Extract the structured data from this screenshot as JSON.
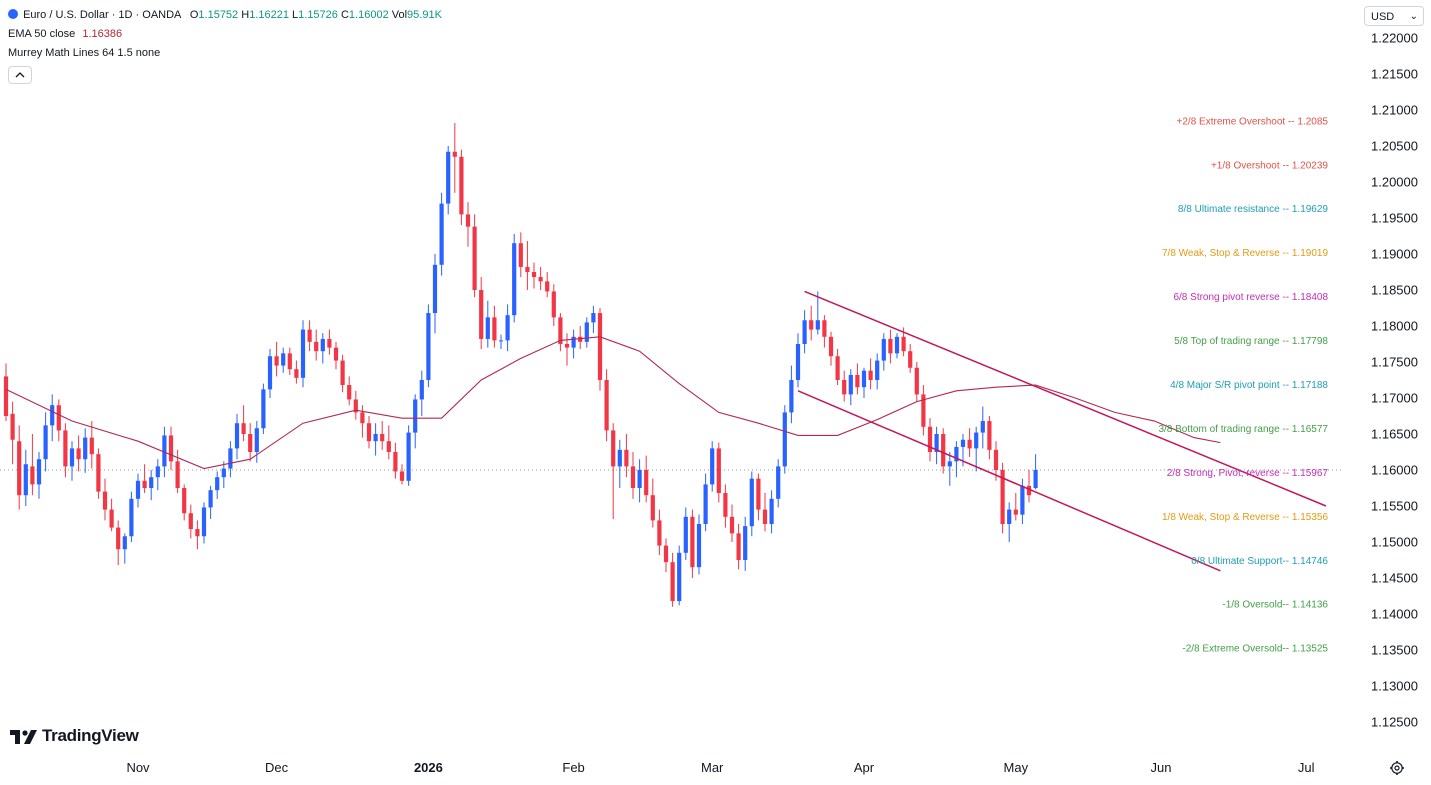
{
  "header": {
    "symbol": "Euro / U.S. Dollar · 1D · OANDA",
    "ohlc": {
      "o_label": "O",
      "o": "1.15752",
      "h_label": "H",
      "h": "1.16221",
      "l_label": "L",
      "l": "1.15726",
      "c_label": "C",
      "c": "1.16002",
      "vol_label": "Vol",
      "vol": "95.91K"
    },
    "ema_label": "EMA 50 close",
    "ema_value": "1.16386",
    "murrey_label": "Murrey Math Lines 64 1.5 none",
    "collapse_icon": "chevron-up-icon"
  },
  "currency": {
    "label": "USD"
  },
  "branding": {
    "logo_text": "TradingView",
    "logo_icon": "tradingview-logo-icon"
  },
  "colors": {
    "up": "#2962ff",
    "down": "#f23645",
    "ema": "#b22852",
    "channel": "#c2185b"
  },
  "chart_data": {
    "type": "candlestick",
    "ylim": [
      1.12,
      1.225
    ],
    "y_ticks": [
      "1.22000",
      "1.21500",
      "1.21000",
      "1.20500",
      "1.20000",
      "1.19500",
      "1.19000",
      "1.18500",
      "1.18000",
      "1.17500",
      "1.17000",
      "1.16500",
      "1.16000",
      "1.15500",
      "1.15000",
      "1.14500",
      "1.14000",
      "1.13500",
      "1.13000",
      "1.12500"
    ],
    "x_ticks": [
      {
        "label": "Nov",
        "bar": 20
      },
      {
        "label": "Dec",
        "bar": 41
      },
      {
        "label": "2026",
        "bar": 64,
        "bold": true
      },
      {
        "label": "Feb",
        "bar": 86
      },
      {
        "label": "Mar",
        "bar": 107
      },
      {
        "label": "Apr",
        "bar": 130
      },
      {
        "label": "May",
        "bar": 153
      },
      {
        "label": "Jun",
        "bar": 175
      },
      {
        "label": "Jul",
        "bar": 197
      }
    ],
    "candles": [
      [
        1.173,
        1.1748,
        1.1668,
        1.1675
      ],
      [
        1.1678,
        1.1695,
        1.1608,
        1.1642
      ],
      [
        1.164,
        1.1662,
        1.1545,
        1.1565
      ],
      [
        1.1565,
        1.1628,
        1.155,
        1.1608
      ],
      [
        1.1605,
        1.165,
        1.1565,
        1.158
      ],
      [
        1.158,
        1.1625,
        1.156,
        1.1615
      ],
      [
        1.1615,
        1.168,
        1.1598,
        1.1662
      ],
      [
        1.1662,
        1.1705,
        1.164,
        1.169
      ],
      [
        1.169,
        1.1698,
        1.164,
        1.1655
      ],
      [
        1.1655,
        1.1665,
        1.159,
        1.1605
      ],
      [
        1.1605,
        1.164,
        1.1585,
        1.163
      ],
      [
        1.163,
        1.1648,
        1.1598,
        1.1615
      ],
      [
        1.1615,
        1.1658,
        1.1596,
        1.1645
      ],
      [
        1.1645,
        1.1668,
        1.1602,
        1.1622
      ],
      [
        1.1622,
        1.163,
        1.156,
        1.157
      ],
      [
        1.157,
        1.1588,
        1.153,
        1.1545
      ],
      [
        1.1545,
        1.156,
        1.1515,
        1.152
      ],
      [
        1.152,
        1.153,
        1.1468,
        1.149
      ],
      [
        1.149,
        1.1512,
        1.147,
        1.1508
      ],
      [
        1.1508,
        1.157,
        1.15,
        1.156
      ],
      [
        1.156,
        1.1595,
        1.1548,
        1.1585
      ],
      [
        1.1585,
        1.1608,
        1.1568,
        1.1575
      ],
      [
        1.1575,
        1.16,
        1.1558,
        1.159
      ],
      [
        1.159,
        1.1615,
        1.1572,
        1.1605
      ],
      [
        1.1605,
        1.166,
        1.159,
        1.1648
      ],
      [
        1.1648,
        1.166,
        1.16,
        1.1612
      ],
      [
        1.1612,
        1.1628,
        1.1568,
        1.1575
      ],
      [
        1.1575,
        1.158,
        1.153,
        1.154
      ],
      [
        1.154,
        1.1552,
        1.1505,
        1.1518
      ],
      [
        1.1518,
        1.153,
        1.149,
        1.1508
      ],
      [
        1.1508,
        1.1555,
        1.1498,
        1.1548
      ],
      [
        1.1548,
        1.1578,
        1.1532,
        1.1572
      ],
      [
        1.1572,
        1.1598,
        1.156,
        1.159
      ],
      [
        1.159,
        1.1612,
        1.1575,
        1.1602
      ],
      [
        1.1602,
        1.164,
        1.159,
        1.163
      ],
      [
        1.163,
        1.1678,
        1.1615,
        1.1665
      ],
      [
        1.1665,
        1.169,
        1.164,
        1.165
      ],
      [
        1.165,
        1.1665,
        1.1612,
        1.1625
      ],
      [
        1.1625,
        1.1668,
        1.161,
        1.1658
      ],
      [
        1.1658,
        1.172,
        1.165,
        1.1712
      ],
      [
        1.1712,
        1.1768,
        1.17,
        1.1758
      ],
      [
        1.1758,
        1.1778,
        1.173,
        1.1745
      ],
      [
        1.1745,
        1.177,
        1.1735,
        1.1762
      ],
      [
        1.1762,
        1.177,
        1.1732,
        1.174
      ],
      [
        1.174,
        1.1752,
        1.172,
        1.1728
      ],
      [
        1.1728,
        1.1808,
        1.1715,
        1.1795
      ],
      [
        1.1795,
        1.1808,
        1.1765,
        1.1778
      ],
      [
        1.1778,
        1.1795,
        1.1752,
        1.1765
      ],
      [
        1.1765,
        1.179,
        1.1748,
        1.1782
      ],
      [
        1.1782,
        1.1795,
        1.176,
        1.177
      ],
      [
        1.177,
        1.1778,
        1.174,
        1.1752
      ],
      [
        1.1752,
        1.176,
        1.1708,
        1.1718
      ],
      [
        1.1718,
        1.173,
        1.169,
        1.1698
      ],
      [
        1.1698,
        1.171,
        1.167,
        1.168
      ],
      [
        1.168,
        1.169,
        1.1645,
        1.1665
      ],
      [
        1.1665,
        1.1675,
        1.163,
        1.164
      ],
      [
        1.164,
        1.1665,
        1.162,
        1.165
      ],
      [
        1.165,
        1.1668,
        1.1628,
        1.164
      ],
      [
        1.164,
        1.1662,
        1.1615,
        1.1625
      ],
      [
        1.1625,
        1.1638,
        1.1588,
        1.1598
      ],
      [
        1.1598,
        1.1608,
        1.158,
        1.1585
      ],
      [
        1.1585,
        1.1662,
        1.1578,
        1.1652
      ],
      [
        1.1652,
        1.1705,
        1.163,
        1.1698
      ],
      [
        1.1698,
        1.1738,
        1.1675,
        1.1725
      ],
      [
        1.1725,
        1.183,
        1.1715,
        1.1818
      ],
      [
        1.1818,
        1.19,
        1.179,
        1.1885
      ],
      [
        1.1885,
        1.1985,
        1.187,
        1.197
      ],
      [
        1.197,
        1.205,
        1.1955,
        1.2042
      ],
      [
        1.2042,
        1.2082,
        1.1985,
        1.2035
      ],
      [
        1.2035,
        1.2045,
        1.194,
        1.1955
      ],
      [
        1.1955,
        1.1972,
        1.191,
        1.1938
      ],
      [
        1.1938,
        1.1955,
        1.184,
        1.185
      ],
      [
        1.185,
        1.1868,
        1.1768,
        1.1782
      ],
      [
        1.1782,
        1.1835,
        1.177,
        1.1812
      ],
      [
        1.1812,
        1.1828,
        1.177,
        1.178
      ],
      [
        1.178,
        1.1788,
        1.1768,
        1.178
      ],
      [
        1.178,
        1.183,
        1.1765,
        1.1815
      ],
      [
        1.1815,
        1.1928,
        1.1805,
        1.1915
      ],
      [
        1.1915,
        1.193,
        1.1868,
        1.1882
      ],
      [
        1.1882,
        1.1918,
        1.185,
        1.1875
      ],
      [
        1.1875,
        1.1888,
        1.1852,
        1.1868
      ],
      [
        1.1868,
        1.1882,
        1.185,
        1.1862
      ],
      [
        1.1862,
        1.1875,
        1.184,
        1.1848
      ],
      [
        1.1848,
        1.1858,
        1.18,
        1.1812
      ],
      [
        1.1812,
        1.1818,
        1.1765,
        1.1775
      ],
      [
        1.1775,
        1.179,
        1.1745,
        1.177
      ],
      [
        1.177,
        1.1795,
        1.1755,
        1.1785
      ],
      [
        1.1785,
        1.18,
        1.1768,
        1.1778
      ],
      [
        1.1778,
        1.1812,
        1.177,
        1.1805
      ],
      [
        1.1805,
        1.1828,
        1.179,
        1.1818
      ],
      [
        1.1818,
        1.1825,
        1.171,
        1.1725
      ],
      [
        1.1725,
        1.174,
        1.164,
        1.1655
      ],
      [
        1.1655,
        1.1665,
        1.1532,
        1.1605
      ],
      [
        1.1605,
        1.1642,
        1.1575,
        1.1628
      ],
      [
        1.1628,
        1.165,
        1.159,
        1.1605
      ],
      [
        1.1605,
        1.1625,
        1.156,
        1.1575
      ],
      [
        1.1575,
        1.1615,
        1.1555,
        1.16
      ],
      [
        1.16,
        1.162,
        1.1555,
        1.1565
      ],
      [
        1.1565,
        1.1588,
        1.152,
        1.153
      ],
      [
        1.153,
        1.1545,
        1.1482,
        1.1495
      ],
      [
        1.1495,
        1.1505,
        1.1458,
        1.1472
      ],
      [
        1.1472,
        1.1485,
        1.141,
        1.1418
      ],
      [
        1.1418,
        1.1495,
        1.1412,
        1.1485
      ],
      [
        1.1485,
        1.1548,
        1.1475,
        1.1535
      ],
      [
        1.1535,
        1.1545,
        1.145,
        1.1465
      ],
      [
        1.1465,
        1.1538,
        1.1455,
        1.1525
      ],
      [
        1.1525,
        1.1595,
        1.1515,
        1.158
      ],
      [
        1.158,
        1.164,
        1.157,
        1.163
      ],
      [
        1.163,
        1.1638,
        1.1555,
        1.1568
      ],
      [
        1.1568,
        1.158,
        1.152,
        1.1535
      ],
      [
        1.1535,
        1.1552,
        1.15,
        1.1512
      ],
      [
        1.1512,
        1.1525,
        1.1462,
        1.1475
      ],
      [
        1.1475,
        1.1535,
        1.146,
        1.1522
      ],
      [
        1.1522,
        1.1598,
        1.1508,
        1.1588
      ],
      [
        1.1588,
        1.1595,
        1.153,
        1.1545
      ],
      [
        1.1545,
        1.1568,
        1.1515,
        1.1525
      ],
      [
        1.1525,
        1.1572,
        1.1512,
        1.156
      ],
      [
        1.156,
        1.1615,
        1.1548,
        1.1605
      ],
      [
        1.1605,
        1.169,
        1.1595,
        1.168
      ],
      [
        1.168,
        1.1745,
        1.1665,
        1.1725
      ],
      [
        1.1725,
        1.179,
        1.1715,
        1.1775
      ],
      [
        1.1775,
        1.1822,
        1.1762,
        1.1808
      ],
      [
        1.1808,
        1.1828,
        1.178,
        1.1795
      ],
      [
        1.1795,
        1.1848,
        1.1788,
        1.1808
      ],
      [
        1.1808,
        1.1815,
        1.177,
        1.1785
      ],
      [
        1.1785,
        1.1792,
        1.1745,
        1.1758
      ],
      [
        1.1758,
        1.1768,
        1.1718,
        1.1725
      ],
      [
        1.1725,
        1.1738,
        1.1695,
        1.1705
      ],
      [
        1.1705,
        1.174,
        1.169,
        1.1732
      ],
      [
        1.1732,
        1.1748,
        1.1705,
        1.1715
      ],
      [
        1.1715,
        1.1742,
        1.17,
        1.1738
      ],
      [
        1.1738,
        1.1755,
        1.1712,
        1.1725
      ],
      [
        1.1725,
        1.1762,
        1.1712,
        1.1752
      ],
      [
        1.1752,
        1.179,
        1.1738,
        1.1782
      ],
      [
        1.1782,
        1.1795,
        1.1748,
        1.1762
      ],
      [
        1.1762,
        1.179,
        1.1755,
        1.1785
      ],
      [
        1.1785,
        1.1798,
        1.1758,
        1.1765
      ],
      [
        1.1765,
        1.1775,
        1.1735,
        1.1742
      ],
      [
        1.1742,
        1.175,
        1.1695,
        1.1705
      ],
      [
        1.1705,
        1.1718,
        1.1648,
        1.166
      ],
      [
        1.166,
        1.1672,
        1.1612,
        1.1625
      ],
      [
        1.1625,
        1.166,
        1.1608,
        1.165
      ],
      [
        1.165,
        1.1658,
        1.1595,
        1.1605
      ],
      [
        1.1605,
        1.1625,
        1.1578,
        1.1612
      ],
      [
        1.1612,
        1.164,
        1.159,
        1.1632
      ],
      [
        1.1632,
        1.165,
        1.1605,
        1.1642
      ],
      [
        1.1642,
        1.1658,
        1.1618,
        1.163
      ],
      [
        1.163,
        1.166,
        1.1598,
        1.1652
      ],
      [
        1.1652,
        1.1688,
        1.163,
        1.1668
      ],
      [
        1.1668,
        1.1675,
        1.1615,
        1.1628
      ],
      [
        1.1628,
        1.164,
        1.1585,
        1.16
      ],
      [
        1.16,
        1.161,
        1.1512,
        1.1525
      ],
      [
        1.1525,
        1.1555,
        1.15,
        1.1545
      ],
      [
        1.1545,
        1.1568,
        1.153,
        1.1538
      ],
      [
        1.1538,
        1.1588,
        1.1525,
        1.1578
      ],
      [
        1.1578,
        1.16,
        1.1555,
        1.1565
      ],
      [
        1.1575,
        1.1622,
        1.1573,
        1.16
      ]
    ],
    "ema": [
      [
        0,
        1.1712
      ],
      [
        10,
        1.1668
      ],
      [
        20,
        1.164
      ],
      [
        30,
        1.1602
      ],
      [
        37,
        1.1615
      ],
      [
        45,
        1.1665
      ],
      [
        53,
        1.1683
      ],
      [
        60,
        1.1672
      ],
      [
        66,
        1.1672
      ],
      [
        72,
        1.1725
      ],
      [
        78,
        1.1755
      ],
      [
        84,
        1.178
      ],
      [
        90,
        1.1785
      ],
      [
        96,
        1.1765
      ],
      [
        102,
        1.172
      ],
      [
        108,
        1.168
      ],
      [
        114,
        1.1665
      ],
      [
        120,
        1.1648
      ],
      [
        126,
        1.1648
      ],
      [
        132,
        1.167
      ],
      [
        138,
        1.1695
      ],
      [
        144,
        1.171
      ],
      [
        150,
        1.1715
      ],
      [
        156,
        1.1718
      ],
      [
        162,
        1.17
      ],
      [
        168,
        1.168
      ],
      [
        174,
        1.1668
      ],
      [
        180,
        1.1645
      ],
      [
        184,
        1.1638
      ]
    ],
    "channel": {
      "upper": [
        [
          121,
          1.1848
        ],
        [
          200,
          1.155
        ]
      ],
      "lower": [
        [
          120,
          1.171
        ],
        [
          184,
          1.146
        ]
      ]
    },
    "murrey": [
      {
        "label": "+2/8 Extreme Overshoot --  1.2085",
        "value": 1.2085,
        "color": "#e0534a"
      },
      {
        "label": "+1/8 Overshoot --  1.20239",
        "value": 1.20239,
        "color": "#e0534a"
      },
      {
        "label": "8/8 Ultimate resistance --  1.19629",
        "value": 1.19629,
        "color": "#1e9db5"
      },
      {
        "label": "7/8 Weak, Stop & Reverse --  1.19019",
        "value": 1.19019,
        "color": "#e39a12"
      },
      {
        "label": "6/8 Strong pivot reverse --  1.18408",
        "value": 1.18408,
        "color": "#c02fb7"
      },
      {
        "label": "5/8 Top of trading range --  1.17798",
        "value": 1.17798,
        "color": "#43a047"
      },
      {
        "label": "4/8 Major S/R pivot point --  1.17188",
        "value": 1.17188,
        "color": "#1e9db5"
      },
      {
        "label": "3/8 Bottom of trading range --  1.16577",
        "value": 1.16577,
        "color": "#43a047"
      },
      {
        "label": "2/8 Strong, Pivot, reverse --  1.15967",
        "value": 1.15967,
        "color": "#c02fb7"
      },
      {
        "label": "1/8 Weak, Stop & Reverse --  1.15356",
        "value": 1.15356,
        "color": "#e39a12"
      },
      {
        "label": "0/8 Ultimate Support--  1.14746",
        "value": 1.14746,
        "color": "#1e9db5"
      },
      {
        "label": "-1/8 Oversold--  1.14136",
        "value": 1.14136,
        "color": "#43a047"
      },
      {
        "label": "-2/8 Extreme Oversold--  1.13525",
        "value": 1.13525,
        "color": "#43a047"
      }
    ],
    "reference_line": 1.16
  }
}
